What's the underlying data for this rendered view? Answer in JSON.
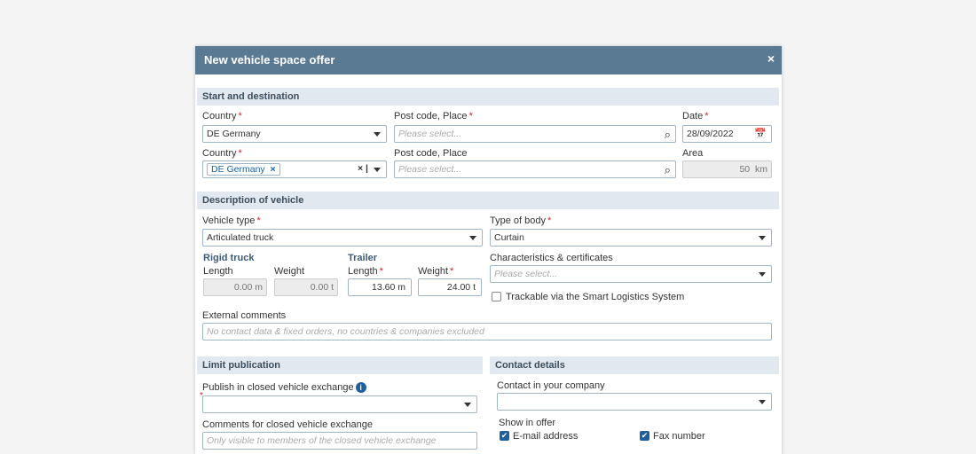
{
  "dialog": {
    "title": "New vehicle space offer",
    "close_icon": "×"
  },
  "start": {
    "section": "Start and destination",
    "country1_label": "Country",
    "country1_value": "DE Germany",
    "place1_label": "Post code, Place",
    "place1_placeholder": "Please select...",
    "date_label": "Date",
    "date_value": "28/09/2022",
    "country2_label": "Country",
    "country2_chip": "DE Germany",
    "place2_label": "Post code, Place",
    "place2_placeholder": "Please select...",
    "area_label": "Area",
    "area_value": "50",
    "area_unit": "km"
  },
  "vehicle": {
    "section": "Description of vehicle",
    "type_label": "Vehicle type",
    "type_value": "Articulated truck",
    "body_label": "Type of body",
    "body_value": "Curtain",
    "rigid_label": "Rigid truck",
    "trailer_label": "Trailer",
    "length_label": "Length",
    "weight_label": "Weight",
    "rigid_length": "0.00",
    "rigid_weight": "0.00",
    "trailer_length": "13.60",
    "trailer_weight": "24.00",
    "unit_m": "m",
    "unit_t": "t",
    "char_label": "Characteristics & certificates",
    "char_placeholder": "Please select...",
    "trackable_label": "Trackable via the Smart Logistics System",
    "trackable_checked": false,
    "comments_label": "External comments",
    "comments_placeholder": "No contact data & fixed orders, no countries & companies excluded"
  },
  "limit": {
    "section": "Limit publication",
    "publish_label": "Publish in closed vehicle exchange",
    "comments_label": "Comments for closed vehicle exchange",
    "comments_placeholder": "Only visible to members of the closed vehicle exchange"
  },
  "contact": {
    "section": "Contact details",
    "contact_label": "Contact in your company",
    "show_label": "Show in offer",
    "email_label": "E-mail address",
    "email_checked": true,
    "fax_label": "Fax number",
    "fax_checked": true
  },
  "colors": {
    "header": "#5a7a94",
    "band": "#e1e8ef",
    "accent": "#1e5f9e",
    "required": "#d0202e"
  }
}
